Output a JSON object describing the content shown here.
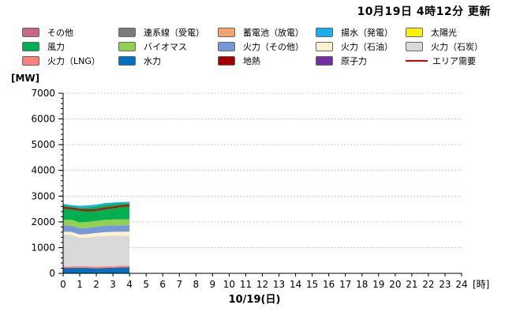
{
  "header": {
    "updated": "10月19日 4時12分 更新"
  },
  "legend": [
    {
      "label": "その他",
      "color": "#c8668a",
      "kind": "box"
    },
    {
      "label": "連系線（受電）",
      "color": "#7a7a7a",
      "kind": "box"
    },
    {
      "label": "蓄電池（放電）",
      "color": "#f4a56e",
      "kind": "box"
    },
    {
      "label": "揚水（発電）",
      "color": "#1aaeea",
      "kind": "box"
    },
    {
      "label": "太陽光",
      "color": "#fff200",
      "kind": "box"
    },
    {
      "label": "風力",
      "color": "#00b050",
      "kind": "box"
    },
    {
      "label": "バイオマス",
      "color": "#92d050",
      "kind": "box"
    },
    {
      "label": "火力（その他）",
      "color": "#7598d8",
      "kind": "box"
    },
    {
      "label": "火力（石油）",
      "color": "#fff2cc",
      "kind": "box"
    },
    {
      "label": "火力（石炭）",
      "color": "#d9d9d9",
      "kind": "box"
    },
    {
      "label": "火力（LNG）",
      "color": "#ff8080",
      "kind": "box"
    },
    {
      "label": "水力",
      "color": "#0070c0",
      "kind": "box"
    },
    {
      "label": "地熱",
      "color": "#a00000",
      "kind": "box"
    },
    {
      "label": "原子力",
      "color": "#7030a0",
      "kind": "box"
    },
    {
      "label": "エリア需要",
      "color": "#d00000",
      "kind": "line"
    }
  ],
  "chart_data": {
    "type": "area",
    "stacked": true,
    "unit_label": "[MW]",
    "xlabel": "10/19(日)",
    "x_unit_label": "[時]",
    "xlim": [
      0,
      24
    ],
    "ylim": [
      0,
      7000
    ],
    "xticks": [
      0,
      1,
      2,
      3,
      4,
      5,
      6,
      7,
      8,
      9,
      10,
      11,
      12,
      13,
      14,
      15,
      16,
      17,
      18,
      19,
      20,
      21,
      22,
      23,
      24
    ],
    "yticks": [
      0,
      1000,
      2000,
      3000,
      4000,
      5000,
      6000,
      7000
    ],
    "grid": true,
    "x": [
      0,
      0.5,
      1,
      1.5,
      2,
      2.5,
      3,
      3.5,
      4
    ],
    "series": [
      {
        "name": "水力",
        "color": "#0070c0",
        "values": [
          200,
          200,
          210,
          200,
          190,
          200,
          210,
          220,
          230
        ]
      },
      {
        "name": "地熱",
        "color": "#a00000",
        "values": [
          10,
          10,
          10,
          10,
          10,
          10,
          10,
          10,
          10
        ]
      },
      {
        "name": "火力（LNG）",
        "color": "#ff8080",
        "values": [
          60,
          60,
          60,
          60,
          60,
          60,
          60,
          60,
          60
        ]
      },
      {
        "name": "火力（石炭）",
        "color": "#d9d9d9",
        "values": [
          1250,
          1230,
          1100,
          1120,
          1170,
          1180,
          1180,
          1170,
          1160
        ]
      },
      {
        "name": "火力（石油）",
        "color": "#fff2cc",
        "values": [
          100,
          110,
          130,
          140,
          140,
          150,
          150,
          160,
          160
        ]
      },
      {
        "name": "火力（その他）",
        "color": "#7598d8",
        "values": [
          240,
          240,
          240,
          240,
          240,
          250,
          250,
          250,
          250
        ]
      },
      {
        "name": "バイオマス",
        "color": "#92d050",
        "values": [
          220,
          230,
          230,
          230,
          230,
          230,
          230,
          230,
          230
        ]
      },
      {
        "name": "風力",
        "color": "#00b050",
        "values": [
          570,
          520,
          560,
          560,
          560,
          580,
          600,
          620,
          630
        ]
      },
      {
        "name": "揚水（発電）",
        "color": "#1aaeea",
        "values": [
          50,
          50,
          80,
          80,
          70,
          70,
          60,
          50,
          50
        ]
      }
    ],
    "demand": {
      "name": "エリア需要",
      "color": "#d00000",
      "values": [
        2550,
        2520,
        2470,
        2440,
        2460,
        2520,
        2560,
        2610,
        2640
      ]
    }
  }
}
